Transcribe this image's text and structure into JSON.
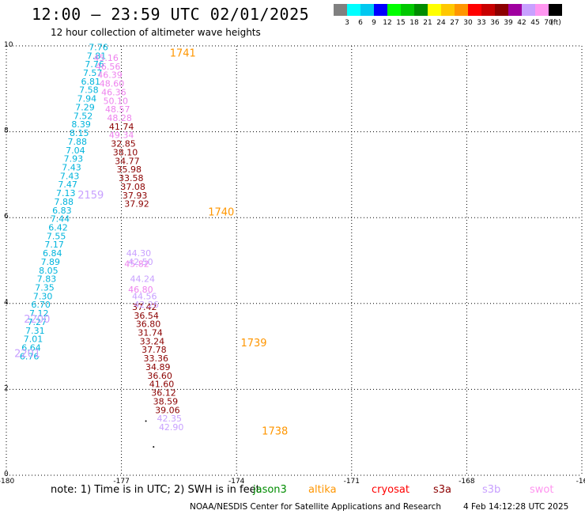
{
  "header": {
    "title": "12:00 – 23:59 UTC 02/01/2025",
    "subtitle": "12 hour collection of altimeter wave heights"
  },
  "colorbar": {
    "colors": [
      "#808080",
      "#00ffff",
      "#00c8f0",
      "#0000ff",
      "#00ff00",
      "#00c800",
      "#008c00",
      "#ffff00",
      "#ffc800",
      "#ff9600",
      "#ff0000",
      "#c80000",
      "#8c0000",
      "#a000a0",
      "#c8a0ff",
      "#ff96f0",
      "#000000"
    ],
    "labels": [
      "3",
      "6",
      "9",
      "12",
      "15",
      "18",
      "21",
      "24",
      "27",
      "30",
      "33",
      "36",
      "39",
      "42",
      "45",
      "70",
      "(ft)"
    ]
  },
  "note": {
    "text": "note: 1) Time is in UTC; 2) SWH is in feet",
    "overlap_text": "jason3"
  },
  "satellites": [
    {
      "name": "altika",
      "color": "#ff9600"
    },
    {
      "name": "cryosat",
      "color": "#ff0000"
    },
    {
      "name": "s3a",
      "color": "#8c0000"
    },
    {
      "name": "s3b",
      "color": "#c8a0ff"
    },
    {
      "name": "swot",
      "color": "#ff96f0"
    }
  ],
  "footer": {
    "left": "NOAA/NESDIS Center for Satellite Applications and Research",
    "right": "4 Feb 14:12:28 UTC 2025"
  },
  "chart_data": {
    "type": "scatter",
    "title": "12:00 – 23:59 UTC 02/01/2025",
    "subtitle": "12 hour collection of altimeter wave heights",
    "xlim": [
      -180,
      -165
    ],
    "ylim": [
      0,
      10
    ],
    "xticks": [
      "-180",
      "-177",
      "-174",
      "-171",
      "-168",
      "-16"
    ],
    "yticks": [
      "0",
      "2",
      "4",
      "6",
      "8",
      "10"
    ],
    "grid": true,
    "legend_position": "bottom",
    "series": [
      {
        "name": "jason3",
        "color": "#00b4dc",
        "points": [
          {
            "x": -177.6,
            "y": 9.9,
            "label": "7.76"
          },
          {
            "x": -177.65,
            "y": 9.7,
            "label": "7.81"
          },
          {
            "x": -177.7,
            "y": 9.5,
            "label": "7.76"
          },
          {
            "x": -177.75,
            "y": 9.3,
            "label": "7.57"
          },
          {
            "x": -177.8,
            "y": 9.1,
            "label": "6.81"
          },
          {
            "x": -177.85,
            "y": 8.9,
            "label": "7.58"
          },
          {
            "x": -177.9,
            "y": 8.7,
            "label": "7.94"
          },
          {
            "x": -177.95,
            "y": 8.5,
            "label": "7.29"
          },
          {
            "x": -178.0,
            "y": 8.3,
            "label": "7.52"
          },
          {
            "x": -178.05,
            "y": 8.1,
            "label": "8.39"
          },
          {
            "x": -178.1,
            "y": 7.9,
            "label": "8.15"
          },
          {
            "x": -178.15,
            "y": 7.7,
            "label": "7.88"
          },
          {
            "x": -178.2,
            "y": 7.5,
            "label": "7.04"
          },
          {
            "x": -178.25,
            "y": 7.3,
            "label": "7.93"
          },
          {
            "x": -178.3,
            "y": 7.1,
            "label": "7.43"
          },
          {
            "x": -178.35,
            "y": 6.9,
            "label": "7.43"
          },
          {
            "x": -178.4,
            "y": 6.7,
            "label": "7.47"
          },
          {
            "x": -178.45,
            "y": 6.5,
            "label": "7.13"
          },
          {
            "x": -178.5,
            "y": 6.3,
            "label": "7.88"
          },
          {
            "x": -178.55,
            "y": 6.1,
            "label": "6.83"
          },
          {
            "x": -178.6,
            "y": 5.9,
            "label": "7.44"
          },
          {
            "x": -178.65,
            "y": 5.7,
            "label": "6.42"
          },
          {
            "x": -178.7,
            "y": 5.5,
            "label": "7.55"
          },
          {
            "x": -178.75,
            "y": 5.3,
            "label": "7.17"
          },
          {
            "x": -178.8,
            "y": 5.1,
            "label": "6.84"
          },
          {
            "x": -178.85,
            "y": 4.9,
            "label": "7.89"
          },
          {
            "x": -178.9,
            "y": 4.7,
            "label": "8.05"
          },
          {
            "x": -178.95,
            "y": 4.5,
            "label": "7.83"
          },
          {
            "x": -179.0,
            "y": 4.3,
            "label": "7.35"
          },
          {
            "x": -179.05,
            "y": 4.1,
            "label": "7.30"
          },
          {
            "x": -179.1,
            "y": 3.9,
            "label": "6.70"
          },
          {
            "x": -179.15,
            "y": 3.7,
            "label": "7.12"
          },
          {
            "x": -179.2,
            "y": 3.5,
            "label": "7.27"
          },
          {
            "x": -179.25,
            "y": 3.3,
            "label": "7.31"
          },
          {
            "x": -179.3,
            "y": 3.1,
            "label": "7.01"
          },
          {
            "x": -179.35,
            "y": 2.9,
            "label": "6.64"
          },
          {
            "x": -179.4,
            "y": 2.7,
            "label": "6.76"
          }
        ]
      },
      {
        "name": "swot",
        "color": "#ee82ee",
        "points": [
          {
            "x": -177.4,
            "y": 9.65,
            "label": "45.16"
          },
          {
            "x": -177.35,
            "y": 9.45,
            "label": "46.56"
          },
          {
            "x": -177.3,
            "y": 9.25,
            "label": "46.39"
          },
          {
            "x": -177.25,
            "y": 9.05,
            "label": "48.60"
          },
          {
            "x": -177.2,
            "y": 8.85,
            "label": "46.36"
          },
          {
            "x": -177.15,
            "y": 8.65,
            "label": "50.10"
          },
          {
            "x": -177.1,
            "y": 8.45,
            "label": "48.57"
          },
          {
            "x": -177.05,
            "y": 8.25,
            "label": "48.28"
          },
          {
            "x": -177.0,
            "y": 7.85,
            "label": "49.34"
          },
          {
            "x": -176.6,
            "y": 4.85,
            "label": "45.82"
          },
          {
            "x": -176.5,
            "y": 4.25,
            "label": "46.80"
          }
        ]
      },
      {
        "name": "s3a",
        "color": "#8b0000",
        "points": [
          {
            "x": -177.0,
            "y": 8.05,
            "label": "41.74"
          },
          {
            "x": -176.95,
            "y": 7.65,
            "label": "32.85"
          },
          {
            "x": -176.9,
            "y": 7.45,
            "label": "38.10"
          },
          {
            "x": -176.85,
            "y": 7.25,
            "label": "34.77"
          },
          {
            "x": -176.8,
            "y": 7.05,
            "label": "35.98"
          },
          {
            "x": -176.75,
            "y": 6.85,
            "label": "33.58"
          },
          {
            "x": -176.7,
            "y": 6.65,
            "label": "37.08"
          },
          {
            "x": -176.65,
            "y": 6.45,
            "label": "37.93"
          },
          {
            "x": -176.6,
            "y": 6.25,
            "label": "37.92"
          },
          {
            "x": -176.4,
            "y": 3.85,
            "label": "37.42"
          },
          {
            "x": -176.35,
            "y": 3.65,
            "label": "36.54"
          },
          {
            "x": -176.3,
            "y": 3.45,
            "label": "36.80"
          },
          {
            "x": -176.25,
            "y": 3.25,
            "label": "31.74"
          },
          {
            "x": -176.2,
            "y": 3.05,
            "label": "33.24"
          },
          {
            "x": -176.15,
            "y": 2.85,
            "label": "37.78"
          },
          {
            "x": -176.1,
            "y": 2.65,
            "label": "33.36"
          },
          {
            "x": -176.05,
            "y": 2.45,
            "label": "34.89"
          },
          {
            "x": -176.0,
            "y": 2.25,
            "label": "36.60"
          },
          {
            "x": -175.95,
            "y": 2.05,
            "label": "41.60"
          },
          {
            "x": -175.9,
            "y": 1.85,
            "label": "36.12"
          },
          {
            "x": -175.85,
            "y": 1.65,
            "label": "38.59"
          },
          {
            "x": -175.8,
            "y": 1.45,
            "label": "39.06"
          }
        ]
      },
      {
        "name": "s3b",
        "color": "#c8a0ff",
        "points": [
          {
            "x": -176.55,
            "y": 5.1,
            "label": "44.30"
          },
          {
            "x": -176.5,
            "y": 4.9,
            "label": "42.50"
          },
          {
            "x": -176.45,
            "y": 4.5,
            "label": "44.24"
          },
          {
            "x": -176.4,
            "y": 4.1,
            "label": "44.56"
          },
          {
            "x": -176.35,
            "y": 3.9,
            "label": "42.26"
          },
          {
            "x": -175.75,
            "y": 1.25,
            "label": "42.35"
          },
          {
            "x": -175.7,
            "y": 1.05,
            "label": "42.90"
          }
        ]
      }
    ],
    "annotations": [
      {
        "x": -175.4,
        "y": 9.75,
        "label": "1741",
        "color": "#ff9600",
        "size": 13
      },
      {
        "x": -174.4,
        "y": 6.05,
        "label": "1740",
        "color": "#ff9600",
        "size": 13
      },
      {
        "x": -173.55,
        "y": 3.0,
        "label": "1739",
        "color": "#ff9600",
        "size": 13
      },
      {
        "x": -173.0,
        "y": 0.95,
        "label": "1738",
        "color": "#ff9600",
        "size": 13
      },
      {
        "x": -177.8,
        "y": 6.45,
        "label": "2159",
        "color": "#c8a0ff",
        "size": 13
      },
      {
        "x": -179.2,
        "y": 3.55,
        "label": "2200",
        "color": "#c8a0ff",
        "size": 13
      },
      {
        "x": -179.45,
        "y": 2.75,
        "label": "2201",
        "color": "#c8a0ff",
        "size": 13
      }
    ]
  }
}
